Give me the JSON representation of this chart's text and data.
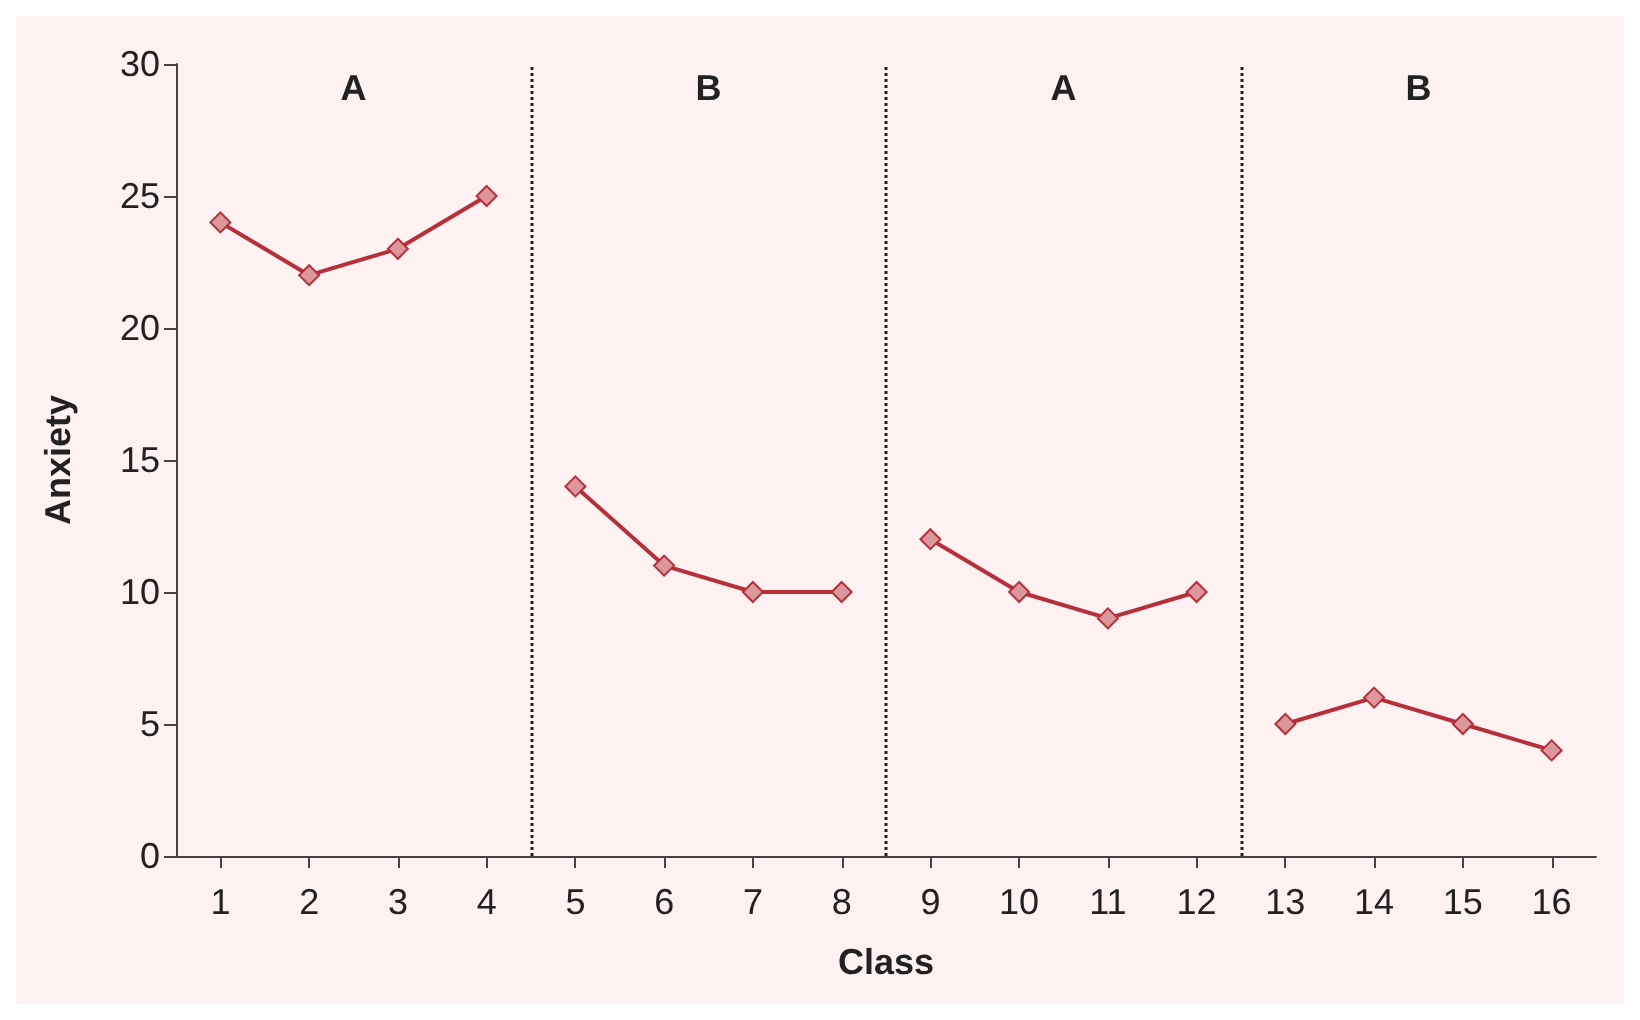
{
  "chart_data": {
    "type": "line",
    "xlabel": "Class",
    "ylabel": "Anxiety",
    "series": [
      {
        "color": "#b5303a",
        "x": [
          1,
          2,
          3,
          4
        ],
        "values": [
          24,
          22,
          23,
          25
        ]
      },
      {
        "color": "#b5303a",
        "x": [
          5,
          6,
          7,
          8
        ],
        "values": [
          14,
          11,
          10,
          10
        ]
      },
      {
        "color": "#b5303a",
        "x": [
          9,
          10,
          11,
          12
        ],
        "values": [
          12,
          10,
          9,
          10
        ]
      },
      {
        "color": "#b5303a",
        "x": [
          13,
          14,
          15,
          16
        ],
        "values": [
          5,
          6,
          5,
          4
        ]
      }
    ],
    "xlim": [
      0.5,
      16.5
    ],
    "xticks": [
      1,
      2,
      3,
      4,
      5,
      6,
      7,
      8,
      9,
      10,
      11,
      12,
      13,
      14,
      15,
      16
    ],
    "ylim": [
      0,
      30
    ],
    "yticks": [
      0,
      5,
      10,
      15,
      20,
      25,
      30
    ],
    "ref_lines": [
      {
        "axis": "x",
        "value": 4.5,
        "color": "#222222",
        "line_style": "dotted"
      },
      {
        "axis": "x",
        "value": 8.5,
        "color": "#222222",
        "line_style": "dotted"
      },
      {
        "axis": "x",
        "value": 12.5,
        "color": "#222222",
        "line_style": "dotted"
      }
    ],
    "annotations": [
      "A",
      "B",
      "A",
      "B"
    ],
    "grid": false,
    "marker": "diamond",
    "line_style": "solid"
  }
}
